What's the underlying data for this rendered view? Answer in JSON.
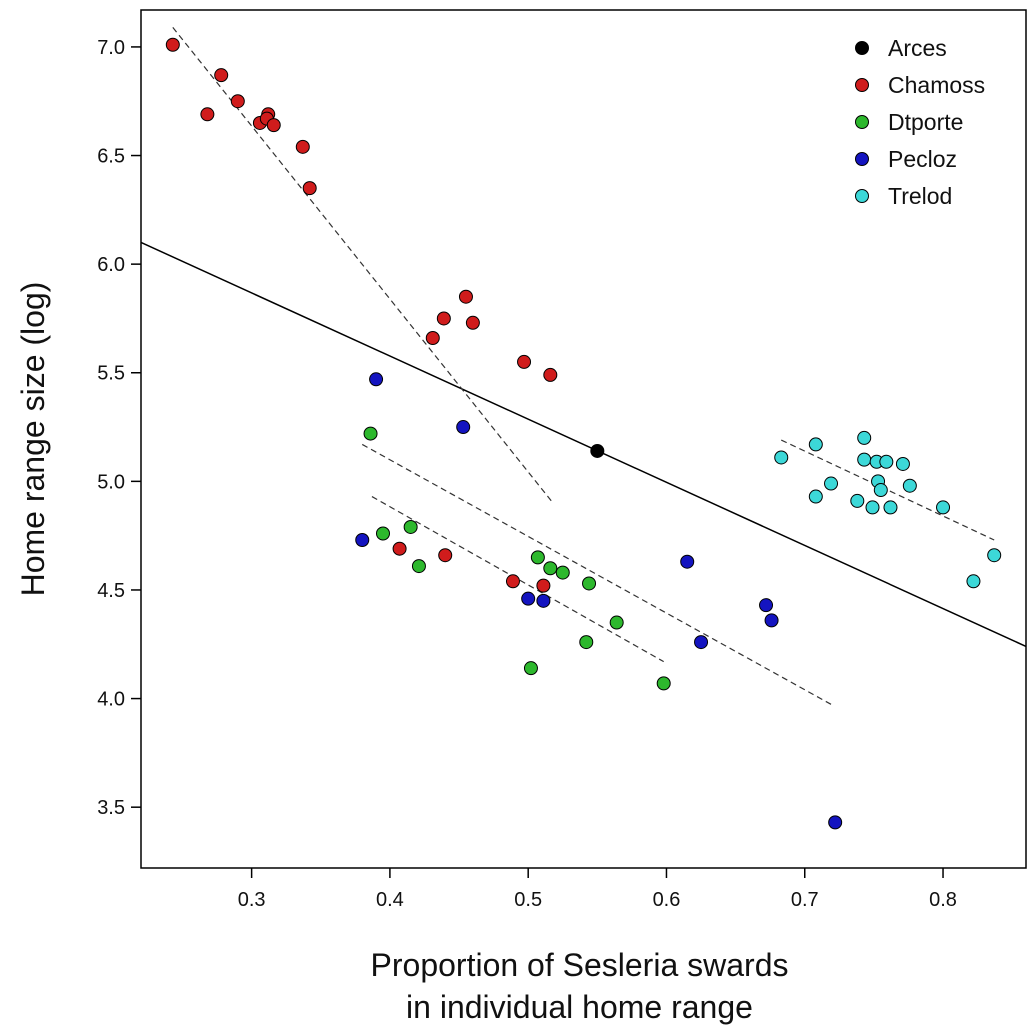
{
  "chart_data": {
    "type": "scatter",
    "title": "",
    "xlabel_lines": [
      "Proportion of Sesleria swards",
      "in individual home range"
    ],
    "ylabel": "Home range size (log)",
    "xlim": [
      0.22,
      0.86
    ],
    "ylim": [
      3.22,
      7.17
    ],
    "x_ticks": [
      0.3,
      0.4,
      0.5,
      0.6,
      0.7,
      0.8
    ],
    "y_ticks": [
      3.5,
      4.0,
      4.5,
      5.0,
      5.5,
      6.0,
      6.5,
      7.0
    ],
    "x_tick_labels": [
      "0.3",
      "0.4",
      "0.5",
      "0.6",
      "0.7",
      "0.8"
    ],
    "y_tick_labels": [
      "3.5",
      "4.0",
      "4.5",
      "5.0",
      "5.5",
      "6.0",
      "6.5",
      "7.0"
    ],
    "legend_position": "top-right",
    "series": [
      {
        "name": "Arces",
        "color": "#000000",
        "points": [
          [
            0.55,
            5.14
          ]
        ]
      },
      {
        "name": "Chamoss",
        "color": "#d01c1c",
        "points": [
          [
            0.243,
            7.01
          ],
          [
            0.278,
            6.87
          ],
          [
            0.268,
            6.69
          ],
          [
            0.29,
            6.75
          ],
          [
            0.312,
            6.69
          ],
          [
            0.306,
            6.65
          ],
          [
            0.311,
            6.67
          ],
          [
            0.316,
            6.64
          ],
          [
            0.337,
            6.54
          ],
          [
            0.342,
            6.35
          ],
          [
            0.455,
            5.85
          ],
          [
            0.439,
            5.75
          ],
          [
            0.46,
            5.73
          ],
          [
            0.431,
            5.66
          ],
          [
            0.497,
            5.55
          ],
          [
            0.516,
            5.49
          ],
          [
            0.407,
            4.69
          ],
          [
            0.44,
            4.66
          ],
          [
            0.489,
            4.54
          ],
          [
            0.511,
            4.52
          ]
        ]
      },
      {
        "name": "Dtporte",
        "color": "#2db82d",
        "points": [
          [
            0.386,
            5.22
          ],
          [
            0.415,
            4.79
          ],
          [
            0.395,
            4.76
          ],
          [
            0.421,
            4.61
          ],
          [
            0.507,
            4.65
          ],
          [
            0.516,
            4.6
          ],
          [
            0.525,
            4.58
          ],
          [
            0.544,
            4.53
          ],
          [
            0.564,
            4.35
          ],
          [
            0.542,
            4.26
          ],
          [
            0.502,
            4.14
          ],
          [
            0.598,
            4.07
          ]
        ]
      },
      {
        "name": "Pecloz",
        "color": "#1414c0",
        "points": [
          [
            0.39,
            5.47
          ],
          [
            0.453,
            5.25
          ],
          [
            0.38,
            4.73
          ],
          [
            0.5,
            4.46
          ],
          [
            0.511,
            4.45
          ],
          [
            0.615,
            4.63
          ],
          [
            0.625,
            4.26
          ],
          [
            0.672,
            4.43
          ],
          [
            0.676,
            4.36
          ],
          [
            0.722,
            3.43
          ]
        ]
      },
      {
        "name": "Trelod",
        "color": "#3cd8d8",
        "points": [
          [
            0.743,
            5.2
          ],
          [
            0.708,
            5.17
          ],
          [
            0.683,
            5.11
          ],
          [
            0.743,
            5.1
          ],
          [
            0.752,
            5.09
          ],
          [
            0.759,
            5.09
          ],
          [
            0.771,
            5.08
          ],
          [
            0.753,
            5.0
          ],
          [
            0.719,
            4.99
          ],
          [
            0.776,
            4.98
          ],
          [
            0.755,
            4.96
          ],
          [
            0.708,
            4.93
          ],
          [
            0.738,
            4.91
          ],
          [
            0.749,
            4.88
          ],
          [
            0.762,
            4.88
          ],
          [
            0.8,
            4.88
          ],
          [
            0.837,
            4.66
          ],
          [
            0.822,
            4.54
          ]
        ]
      }
    ],
    "overall_fit": {
      "style": "solid",
      "x": [
        0.22,
        0.86
      ],
      "y": [
        6.1,
        4.24
      ]
    },
    "group_fits": [
      {
        "group": "Chamoss",
        "style": "dashed",
        "x": [
          0.243,
          0.518
        ],
        "y": [
          7.09,
          4.9
        ]
      },
      {
        "group": "Dtporte",
        "style": "dashed",
        "x": [
          0.387,
          0.598
        ],
        "y": [
          4.93,
          4.17
        ]
      },
      {
        "group": "Pecloz",
        "style": "dashed",
        "x": [
          0.38,
          0.72
        ],
        "y": [
          5.17,
          3.97
        ]
      },
      {
        "group": "Trelod",
        "style": "dashed",
        "x": [
          0.683,
          0.837
        ],
        "y": [
          5.19,
          4.73
        ]
      }
    ]
  }
}
